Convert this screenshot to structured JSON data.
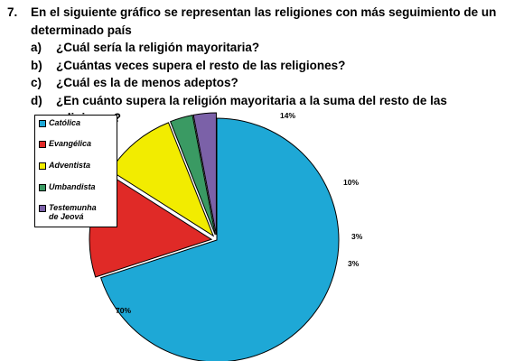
{
  "question": {
    "number": "7.",
    "intro_line1": "En el siguiente gráfico se representan las religiones con más seguimiento de un",
    "intro_line2": "determinado país",
    "items": [
      {
        "letter": "a)",
        "text": "¿Cuál sería la religión mayoritaria?"
      },
      {
        "letter": "b)",
        "text": "¿Cuántas veces supera el resto de las religiones?"
      },
      {
        "letter": "c)",
        "text": "¿Cuál es la de menos adeptos?"
      },
      {
        "letter": "d)",
        "text": "¿En cuánto supera la religión mayoritaria a la suma del resto de las religiones?"
      }
    ]
  },
  "chart_data": {
    "type": "pie",
    "slices": [
      {
        "name": "Católica",
        "value": 70,
        "label": "70%",
        "color": "#1ea8d6",
        "exploded": false
      },
      {
        "name": "Evangélica",
        "value": 14,
        "label": "14%",
        "color": "#e02a27",
        "exploded": true
      },
      {
        "name": "Adventista",
        "value": 10,
        "label": "10%",
        "color": "#f2ec00",
        "exploded": true
      },
      {
        "name": "Umbandista",
        "value": 3,
        "label": "3%",
        "color": "#3a9a63",
        "exploded": true
      },
      {
        "name": "Testemunha de Jeová",
        "value": 3,
        "label": "3%",
        "color": "#7b61a8",
        "exploded": true
      }
    ],
    "legend": {
      "position": "top-left",
      "entries": [
        {
          "line1": "Católica",
          "line2": ""
        },
        {
          "line1": "Evangélica",
          "line2": ""
        },
        {
          "line1": "Adventista",
          "line2": ""
        },
        {
          "line1": "Umbandista",
          "line2": ""
        },
        {
          "line1": "Testemunha",
          "line2": "de Jeová"
        }
      ]
    }
  }
}
